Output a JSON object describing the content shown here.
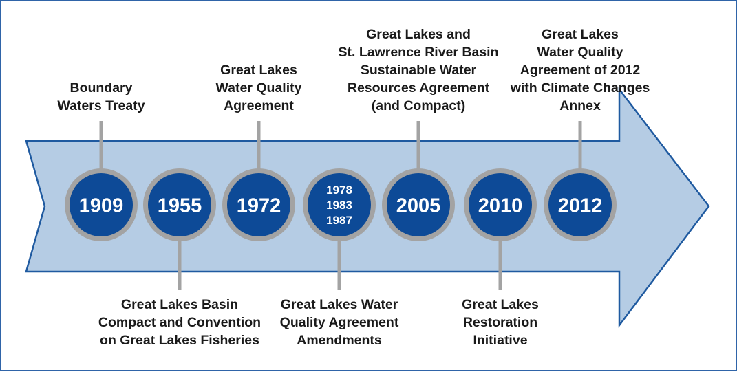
{
  "events": [
    {
      "years": [
        "1909"
      ],
      "label": [
        "Boundary",
        "Waters Treaty"
      ]
    },
    {
      "years": [
        "1955"
      ],
      "label": [
        "Great Lakes Basin",
        "Compact and Convention",
        "on Great Lakes Fisheries"
      ]
    },
    {
      "years": [
        "1972"
      ],
      "label": [
        "Great Lakes",
        "Water Quality",
        "Agreement"
      ]
    },
    {
      "years": [
        "1978",
        "1983",
        "1987"
      ],
      "label": [
        "Great Lakes Water",
        "Quality Agreement",
        "Amendments"
      ]
    },
    {
      "years": [
        "2005"
      ],
      "label": [
        "Great Lakes and",
        "St. Lawrence River Basin",
        "Sustainable Water",
        "Resources Agreement",
        "(and Compact)"
      ]
    },
    {
      "years": [
        "2010"
      ],
      "label": [
        "Great Lakes",
        "Restoration",
        "Initiative"
      ]
    },
    {
      "years": [
        "2012"
      ],
      "label": [
        "Great Lakes",
        "Water Quality",
        "Agreement of 2012",
        "with Climate Changes",
        "Annex"
      ]
    }
  ]
}
